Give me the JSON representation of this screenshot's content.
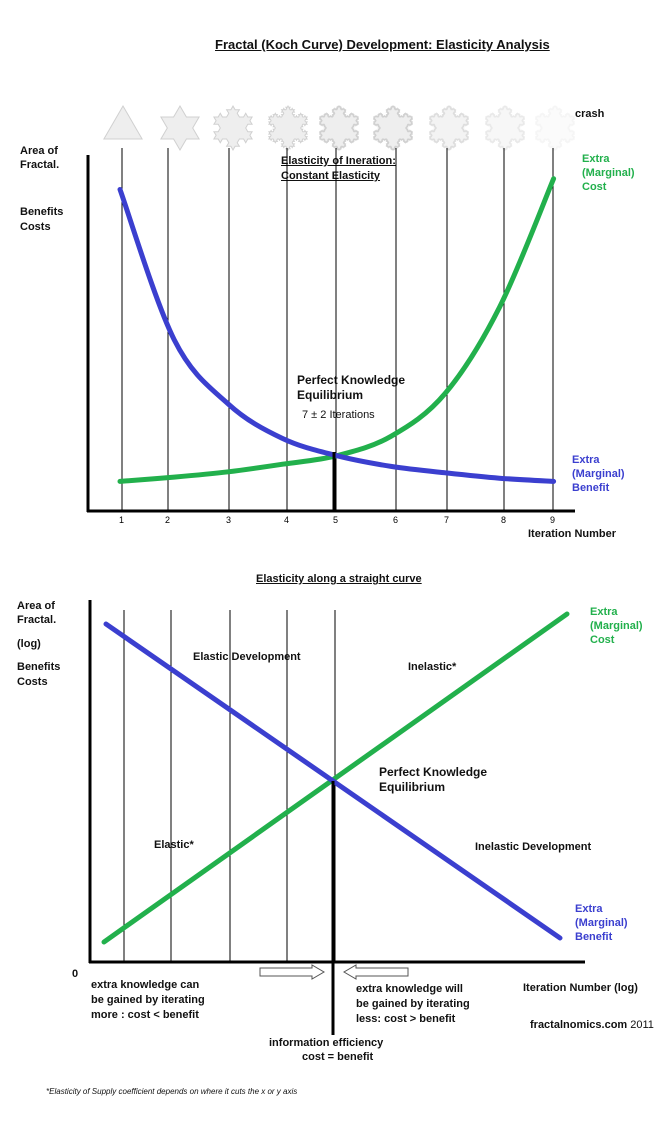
{
  "chart_data": [
    {
      "type": "line",
      "title": "Fractal (Koch Curve) Development: Elasticity Analysis",
      "ylabel_lines": [
        "Area of",
        "Fractal.",
        "",
        "Benefits",
        "Costs"
      ],
      "xlabel": "Iteration  Number",
      "x_ticks": [
        "1",
        "2",
        "3",
        "4",
        "5",
        "6",
        "7",
        "8",
        "9"
      ],
      "crash_label": "crash",
      "center_label": [
        "Elasticity of Ineration:",
        "Constant Elasticity"
      ],
      "equilibrium_label": [
        "Perfect Knowledge",
        "Equilibrium",
        "7 ± 2  Iterations"
      ],
      "series": [
        {
          "name": "Extra (Marginal) Cost",
          "label_lines": [
            "Extra",
            "(Marginal)",
            "Cost"
          ],
          "color": "#22b04c",
          "x": [
            1,
            2,
            3,
            4,
            5,
            6,
            7,
            8,
            9
          ],
          "y": [
            0.9,
            1.1,
            1.35,
            1.7,
            2.1,
            3.0,
            5.0,
            9.0,
            15.0
          ]
        },
        {
          "name": "Extra (Marginal) Benefit",
          "label_lines": [
            "Extra",
            "(Marginal)",
            "Benefit"
          ],
          "color": "#3b3fcf",
          "x": [
            1,
            2,
            3,
            4,
            5,
            6,
            7,
            8,
            9
          ],
          "y": [
            14.5,
            7.5,
            4.5,
            2.9,
            2.1,
            1.6,
            1.3,
            1.05,
            0.9
          ]
        }
      ],
      "equilibrium_x": 5
    },
    {
      "type": "line",
      "title": "Elasticity along a straight curve",
      "ylabel_lines": [
        "Area of",
        "Fractal.",
        "(log)",
        "Benefits",
        "Costs"
      ],
      "xlabel": "Iteration  Number (log)",
      "origin_label": "0",
      "annotations": {
        "elastic_development": "Elastic Development",
        "inelastic_star": "Inelastic*",
        "elastic_star": "Elastic*",
        "inelastic_development": "Inelastic Development",
        "equilibrium": [
          "Perfect Knowledge",
          "Equilibrium"
        ],
        "left_note": [
          "extra knowledge can",
          "be gained by iterating",
          "more : cost < benefit"
        ],
        "right_note": [
          "extra knowledge will",
          "be gained by iterating",
          "less: cost > benefit"
        ],
        "bottom_note": [
          "information efficiency",
          "cost = benefit"
        ],
        "credit": "fractalnomics.com",
        "year": "2011"
      },
      "series": [
        {
          "name": "Extra (Marginal) Cost",
          "label_lines": [
            "Extra",
            "(Marginal)",
            "Cost"
          ],
          "color": "#22b04c"
        },
        {
          "name": "Extra (Marginal) Benefit",
          "label_lines": [
            "Extra",
            "(Marginal)",
            "Benefit"
          ],
          "color": "#3b3fcf"
        }
      ]
    }
  ],
  "footnote": "Elasticity of Supply coefficient depends on where it cuts the x or y axis",
  "colors": {
    "cost": "#22b04c",
    "benefit": "#3b3fcf",
    "axis": "#000000"
  }
}
